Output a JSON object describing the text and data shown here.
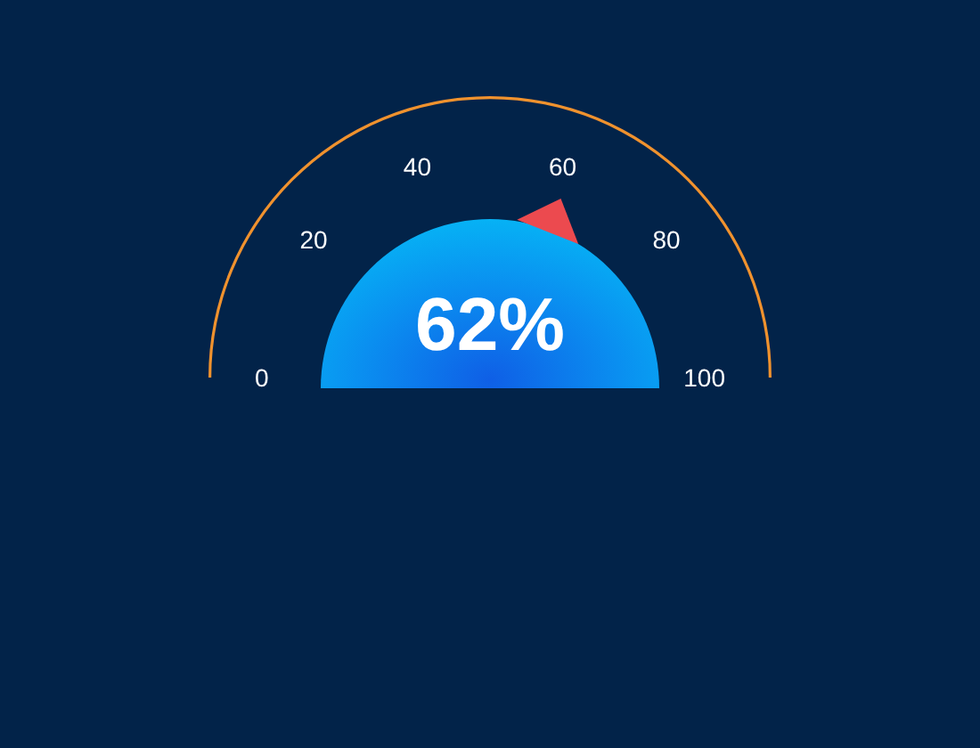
{
  "chart_data": {
    "type": "other",
    "values": [
      62
    ],
    "value_labels": [
      "62%"
    ],
    "annotations": [
      "0",
      "20",
      "40",
      "60",
      "80",
      "100"
    ]
  }
}
